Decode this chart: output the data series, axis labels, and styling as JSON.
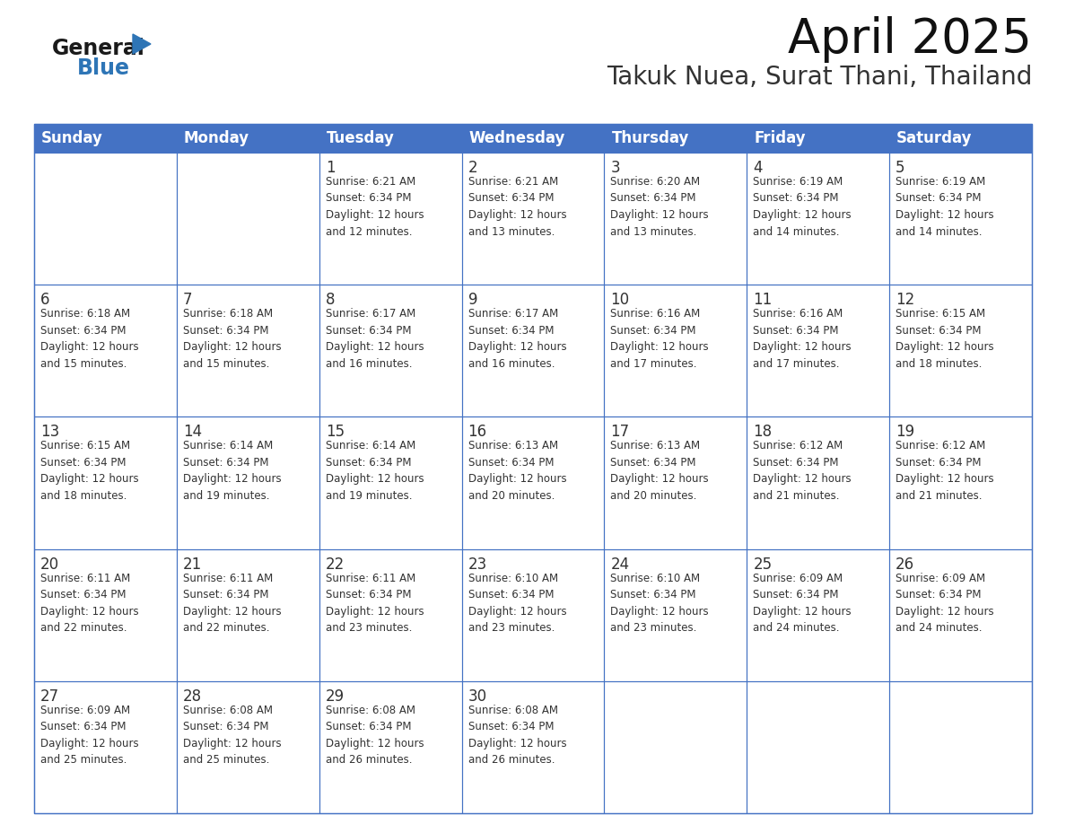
{
  "title": "April 2025",
  "subtitle": "Takuk Nuea, Surat Thani, Thailand",
  "header_bg_color": "#4472C4",
  "header_text_color": "#FFFFFF",
  "cell_bg_color": "#FFFFFF",
  "border_color": "#4472C4",
  "text_color": "#333333",
  "day_number_color": "#333333",
  "day_headers": [
    "Sunday",
    "Monday",
    "Tuesday",
    "Wednesday",
    "Thursday",
    "Friday",
    "Saturday"
  ],
  "weeks": [
    [
      {
        "day": "",
        "info": ""
      },
      {
        "day": "",
        "info": ""
      },
      {
        "day": "1",
        "info": "Sunrise: 6:21 AM\nSunset: 6:34 PM\nDaylight: 12 hours\nand 12 minutes."
      },
      {
        "day": "2",
        "info": "Sunrise: 6:21 AM\nSunset: 6:34 PM\nDaylight: 12 hours\nand 13 minutes."
      },
      {
        "day": "3",
        "info": "Sunrise: 6:20 AM\nSunset: 6:34 PM\nDaylight: 12 hours\nand 13 minutes."
      },
      {
        "day": "4",
        "info": "Sunrise: 6:19 AM\nSunset: 6:34 PM\nDaylight: 12 hours\nand 14 minutes."
      },
      {
        "day": "5",
        "info": "Sunrise: 6:19 AM\nSunset: 6:34 PM\nDaylight: 12 hours\nand 14 minutes."
      }
    ],
    [
      {
        "day": "6",
        "info": "Sunrise: 6:18 AM\nSunset: 6:34 PM\nDaylight: 12 hours\nand 15 minutes."
      },
      {
        "day": "7",
        "info": "Sunrise: 6:18 AM\nSunset: 6:34 PM\nDaylight: 12 hours\nand 15 minutes."
      },
      {
        "day": "8",
        "info": "Sunrise: 6:17 AM\nSunset: 6:34 PM\nDaylight: 12 hours\nand 16 minutes."
      },
      {
        "day": "9",
        "info": "Sunrise: 6:17 AM\nSunset: 6:34 PM\nDaylight: 12 hours\nand 16 minutes."
      },
      {
        "day": "10",
        "info": "Sunrise: 6:16 AM\nSunset: 6:34 PM\nDaylight: 12 hours\nand 17 minutes."
      },
      {
        "day": "11",
        "info": "Sunrise: 6:16 AM\nSunset: 6:34 PM\nDaylight: 12 hours\nand 17 minutes."
      },
      {
        "day": "12",
        "info": "Sunrise: 6:15 AM\nSunset: 6:34 PM\nDaylight: 12 hours\nand 18 minutes."
      }
    ],
    [
      {
        "day": "13",
        "info": "Sunrise: 6:15 AM\nSunset: 6:34 PM\nDaylight: 12 hours\nand 18 minutes."
      },
      {
        "day": "14",
        "info": "Sunrise: 6:14 AM\nSunset: 6:34 PM\nDaylight: 12 hours\nand 19 minutes."
      },
      {
        "day": "15",
        "info": "Sunrise: 6:14 AM\nSunset: 6:34 PM\nDaylight: 12 hours\nand 19 minutes."
      },
      {
        "day": "16",
        "info": "Sunrise: 6:13 AM\nSunset: 6:34 PM\nDaylight: 12 hours\nand 20 minutes."
      },
      {
        "day": "17",
        "info": "Sunrise: 6:13 AM\nSunset: 6:34 PM\nDaylight: 12 hours\nand 20 minutes."
      },
      {
        "day": "18",
        "info": "Sunrise: 6:12 AM\nSunset: 6:34 PM\nDaylight: 12 hours\nand 21 minutes."
      },
      {
        "day": "19",
        "info": "Sunrise: 6:12 AM\nSunset: 6:34 PM\nDaylight: 12 hours\nand 21 minutes."
      }
    ],
    [
      {
        "day": "20",
        "info": "Sunrise: 6:11 AM\nSunset: 6:34 PM\nDaylight: 12 hours\nand 22 minutes."
      },
      {
        "day": "21",
        "info": "Sunrise: 6:11 AM\nSunset: 6:34 PM\nDaylight: 12 hours\nand 22 minutes."
      },
      {
        "day": "22",
        "info": "Sunrise: 6:11 AM\nSunset: 6:34 PM\nDaylight: 12 hours\nand 23 minutes."
      },
      {
        "day": "23",
        "info": "Sunrise: 6:10 AM\nSunset: 6:34 PM\nDaylight: 12 hours\nand 23 minutes."
      },
      {
        "day": "24",
        "info": "Sunrise: 6:10 AM\nSunset: 6:34 PM\nDaylight: 12 hours\nand 23 minutes."
      },
      {
        "day": "25",
        "info": "Sunrise: 6:09 AM\nSunset: 6:34 PM\nDaylight: 12 hours\nand 24 minutes."
      },
      {
        "day": "26",
        "info": "Sunrise: 6:09 AM\nSunset: 6:34 PM\nDaylight: 12 hours\nand 24 minutes."
      }
    ],
    [
      {
        "day": "27",
        "info": "Sunrise: 6:09 AM\nSunset: 6:34 PM\nDaylight: 12 hours\nand 25 minutes."
      },
      {
        "day": "28",
        "info": "Sunrise: 6:08 AM\nSunset: 6:34 PM\nDaylight: 12 hours\nand 25 minutes."
      },
      {
        "day": "29",
        "info": "Sunrise: 6:08 AM\nSunset: 6:34 PM\nDaylight: 12 hours\nand 26 minutes."
      },
      {
        "day": "30",
        "info": "Sunrise: 6:08 AM\nSunset: 6:34 PM\nDaylight: 12 hours\nand 26 minutes."
      },
      {
        "day": "",
        "info": ""
      },
      {
        "day": "",
        "info": ""
      },
      {
        "day": "",
        "info": ""
      }
    ]
  ],
  "logo_text_general": "General",
  "logo_text_blue": "Blue",
  "logo_color_general": "#1a1a1a",
  "logo_color_blue": "#2E75B6",
  "logo_triangle_color": "#2E75B6",
  "title_fontsize": 38,
  "subtitle_fontsize": 20,
  "header_fontsize": 12,
  "day_num_fontsize": 12,
  "info_fontsize": 8.5
}
